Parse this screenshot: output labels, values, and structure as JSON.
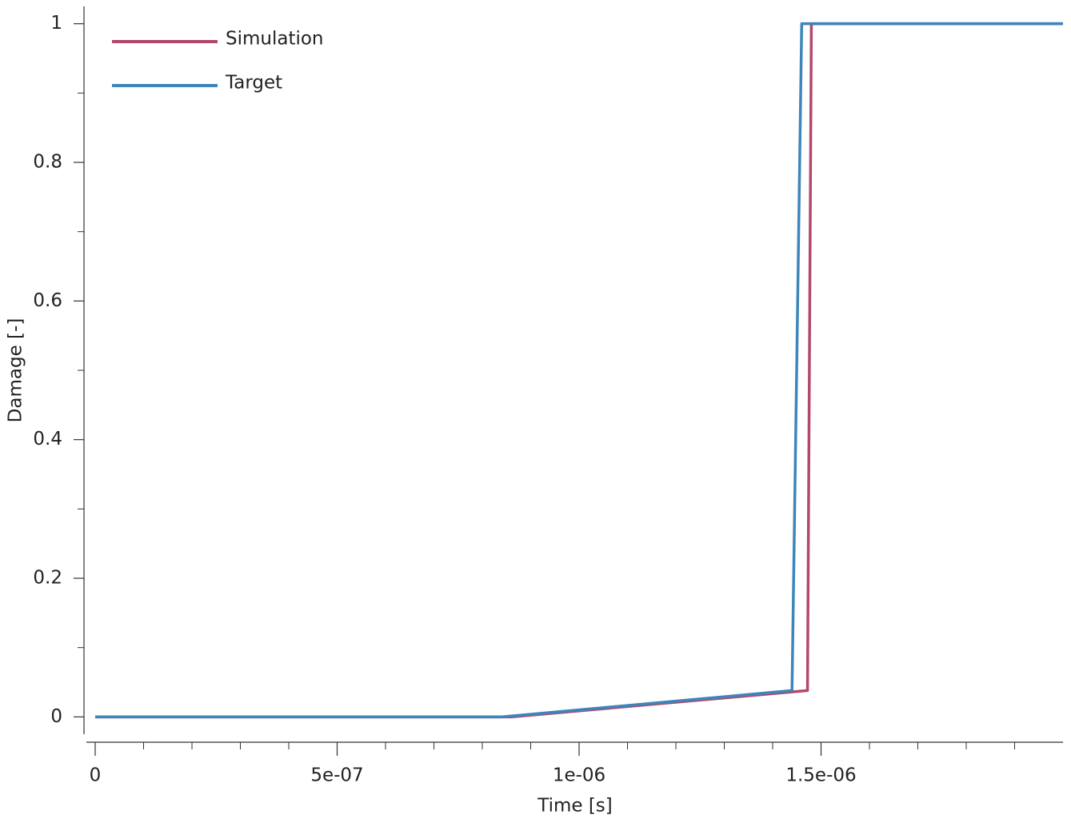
{
  "chart_data": {
    "type": "line",
    "xlabel": "Time [s]",
    "ylabel": "Damage [-]",
    "xlim": [
      0,
      2e-06
    ],
    "ylim": [
      -0.025,
      1.025
    ],
    "xticks": [
      0,
      {
        "value": 5e-07,
        "label": "5e-07"
      },
      {
        "value": 1e-06,
        "label": "1e-06"
      },
      {
        "value": 1.5e-06,
        "label": "1.5e-06"
      }
    ],
    "xminorticks": [
      1e-07,
      2e-07,
      3e-07,
      4e-07,
      6e-07,
      7e-07,
      8e-07,
      9e-07,
      1.1e-06,
      1.2e-06,
      1.3e-06,
      1.4e-06,
      1.6e-06,
      1.7e-06,
      1.8e-06,
      1.9e-06
    ],
    "yticks": [
      0,
      0.2,
      0.4,
      0.6,
      0.8,
      1
    ],
    "yminorticks": [
      0.1,
      0.3,
      0.5,
      0.7,
      0.9
    ],
    "legend": "upper left",
    "series": [
      {
        "name": "Simulation",
        "color": "#b3486c",
        "x": [
          0,
          8.6e-07,
          1.472e-06,
          1.48e-06,
          2e-06
        ],
        "values": [
          0,
          0,
          0.038,
          1,
          1
        ]
      },
      {
        "name": "Target",
        "color": "#3d85bb",
        "x": [
          0,
          8.4e-07,
          1.44e-06,
          1.46e-06,
          2e-06
        ],
        "values": [
          0,
          0,
          0.038,
          1,
          1
        ]
      }
    ]
  }
}
